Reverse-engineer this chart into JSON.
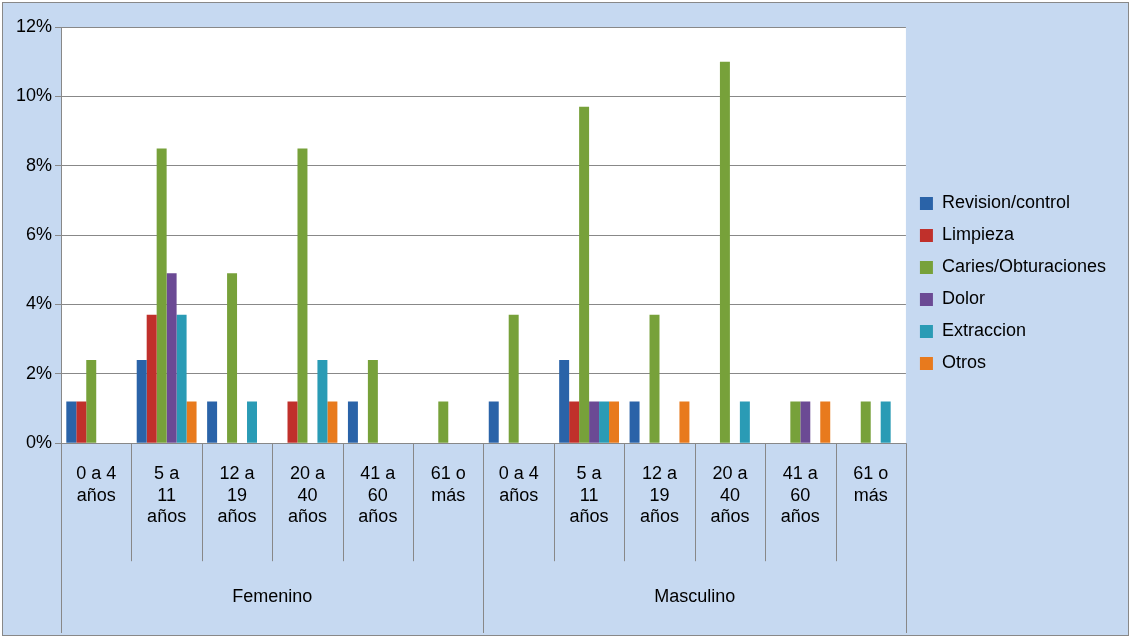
{
  "chart_data": {
    "type": "bar",
    "categories": [
      "0 a 4 años",
      "5 a 11 años",
      "12 a 19 años",
      "20 a 40 años",
      "41 a 60 años",
      "61 o más",
      "0 a 4 años",
      "5 a 11 años",
      "12 a 19 años",
      "20 a 40 años",
      "41 a 60 años",
      "61 o más"
    ],
    "annotations": [
      "Femenino",
      "Masculino"
    ],
    "series": [
      {
        "name": "Revision/control",
        "color": "#2a63a8",
        "values": [
          1.2,
          2.4,
          1.2,
          0,
          1.2,
          0,
          1.2,
          2.4,
          1.2,
          0,
          0,
          0
        ]
      },
      {
        "name": "Limpieza",
        "color": "#c0302b",
        "values": [
          1.2,
          3.7,
          0,
          1.2,
          0,
          0,
          0,
          1.2,
          0,
          0,
          0,
          0
        ]
      },
      {
        "name": "Caries/Obturaciones",
        "color": "#77a13a",
        "values": [
          2.4,
          8.5,
          4.9,
          8.5,
          2.4,
          1.2,
          3.7,
          9.7,
          3.7,
          11.0,
          1.2,
          1.2
        ]
      },
      {
        "name": "Dolor",
        "color": "#6b4a94",
        "values": [
          0,
          4.9,
          0,
          0,
          0,
          0,
          0,
          1.2,
          0,
          0,
          1.2,
          0
        ]
      },
      {
        "name": "Extraccion",
        "color": "#2a9bb5",
        "values": [
          0,
          3.7,
          1.2,
          2.4,
          0,
          0,
          0,
          1.2,
          0,
          1.2,
          0,
          1.2
        ]
      },
      {
        "name": "Otros",
        "color": "#e87a1d",
        "values": [
          0,
          1.2,
          0,
          1.2,
          0,
          0,
          0,
          1.2,
          1.2,
          0,
          1.2,
          0
        ]
      }
    ],
    "ylim": [
      0,
      12
    ],
    "yticks": [
      {
        "value": 0,
        "label": "0%"
      },
      {
        "value": 2,
        "label": "2%"
      },
      {
        "value": 4,
        "label": "4%"
      },
      {
        "value": 6,
        "label": "6%"
      },
      {
        "value": 8,
        "label": "8%"
      },
      {
        "value": 10,
        "label": "10%"
      },
      {
        "value": 12,
        "label": "12%"
      }
    ],
    "grid": "y",
    "legend": "right"
  }
}
